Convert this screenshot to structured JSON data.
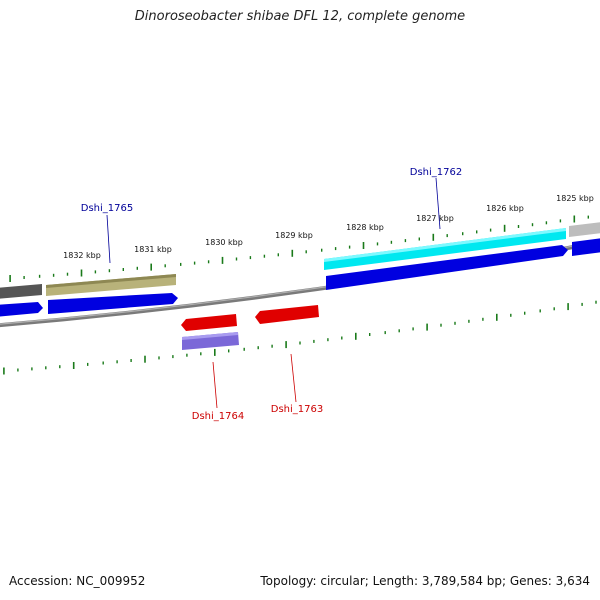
{
  "title": "Dinoroseobacter shibae DFL 12, complete genome",
  "footer": {
    "accession": "Accession: NC_009952",
    "summary": "Topology: circular; Length: 3,789,584 bp; Genes: 3,634"
  },
  "ticks": [
    "1832 kbp",
    "1831 kbp",
    "1830 kbp",
    "1829 kbp",
    "1828 kbp",
    "1827 kbp",
    "1826 kbp",
    "1825 kbp"
  ],
  "genes": [
    {
      "label": "Dshi_1765",
      "color": "#000099"
    },
    {
      "label": "Dshi_1762",
      "color": "#000099"
    },
    {
      "label": "Dshi_1764",
      "color": "#cc0000"
    },
    {
      "label": "Dshi_1763",
      "color": "#cc0000"
    }
  ],
  "colors": {
    "backbone": "#8a8a8a",
    "tick": "#1a7a1a",
    "cds_forward": "#0000e0",
    "cds_reverse": "#e00000",
    "rna_forward": "#00e5ee",
    "rna_reverse": "#7b68d8",
    "feature_olive": "#b8b27a",
    "feature_dark": "#555555",
    "feature_grey": "#bbbbbb"
  }
}
